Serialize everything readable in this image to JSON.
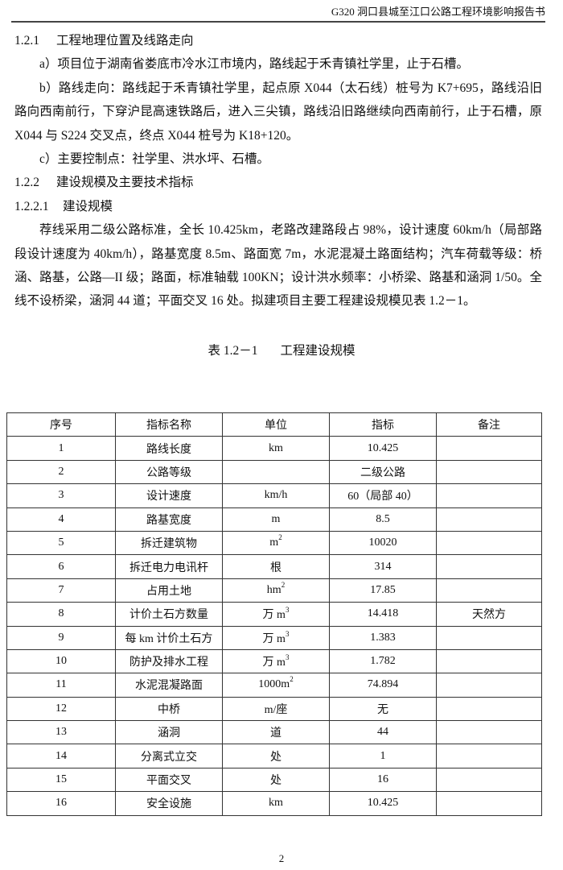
{
  "header": {
    "title": "G320 洞口县城至江口公路工程环境影响报告书"
  },
  "sections": {
    "s121": {
      "num": "1.2.1",
      "title": "工程地理位置及线路走向"
    },
    "pa": "a）项目位于湖南省娄底市冷水江市境内，路线起于禾青镇社学里，止于石槽。",
    "pb": "b）路线走向：路线起于禾青镇社学里，起点原 X044（太石线）桩号为 K7+695，路线沿旧路向西南前行，下穿沪昆高速铁路后，进入三尖镇，路线沿旧路继续向西南前行，止于石槽，原 X044 与 S224 交叉点，终点 X044 桩号为 K18+120。",
    "pc": "c）主要控制点：社学里、洪水坪、石槽。",
    "s122": {
      "num": "1.2.2",
      "title": "建设规模及主要技术指标"
    },
    "s1221": {
      "num": "1.2.2.1",
      "title": "建设规模"
    },
    "pd": "荐线采用二级公路标准，全长 10.425km，老路改建路段占 98%，设计速度 60km/h（局部路段设计速度为 40km/h），路基宽度 8.5m、路面宽 7m，水泥混凝土路面结构；汽车荷载等级：桥涵、路基，公路—II 级；路面，标准轴载 100KN；设计洪水频率：小桥梁、路基和涵洞 1/50。全线不设桥梁，涵洞 44 道；平面交叉 16 处。拟建项目主要工程建设规模见表 1.2－1。"
  },
  "table": {
    "caption_num": "表 1.2－1",
    "caption_title": "工程建设规模",
    "headers": [
      "序号",
      "指标名称",
      "单位",
      "指标",
      "备注"
    ],
    "rows": [
      {
        "no": "1",
        "name": "路线长度",
        "unit": "km",
        "unit_sup": "",
        "value": "10.425",
        "note": ""
      },
      {
        "no": "2",
        "name": "公路等级",
        "unit": "",
        "unit_sup": "",
        "value": "二级公路",
        "note": ""
      },
      {
        "no": "3",
        "name": "设计速度",
        "unit": "km/h",
        "unit_sup": "",
        "value": "60（局部 40）",
        "note": ""
      },
      {
        "no": "4",
        "name": "路基宽度",
        "unit": "m",
        "unit_sup": "",
        "value": "8.5",
        "note": ""
      },
      {
        "no": "5",
        "name": "拆迁建筑物",
        "unit": "m",
        "unit_sup": "2",
        "value": "10020",
        "note": ""
      },
      {
        "no": "6",
        "name": "拆迁电力电讯杆",
        "unit": "根",
        "unit_sup": "",
        "value": "314",
        "note": ""
      },
      {
        "no": "7",
        "name": "占用土地",
        "unit": "hm",
        "unit_sup": "2",
        "value": "17.85",
        "note": ""
      },
      {
        "no": "8",
        "name": "计价土石方数量",
        "unit": "万 m",
        "unit_sup": "3",
        "value": "14.418",
        "note": "天然方"
      },
      {
        "no": "9",
        "name": "每 km 计价土石方",
        "unit": "万 m",
        "unit_sup": "3",
        "value": "1.383",
        "note": ""
      },
      {
        "no": "10",
        "name": "防护及排水工程",
        "unit": "万 m",
        "unit_sup": "3",
        "value": "1.782",
        "note": ""
      },
      {
        "no": "11",
        "name": "水泥混凝路面",
        "unit": "1000m",
        "unit_sup": "2",
        "value": "74.894",
        "note": ""
      },
      {
        "no": "12",
        "name": "中桥",
        "unit": "m/座",
        "unit_sup": "",
        "value": "无",
        "note": ""
      },
      {
        "no": "13",
        "name": "涵洞",
        "unit": "道",
        "unit_sup": "",
        "value": "44",
        "note": ""
      },
      {
        "no": "14",
        "name": "分离式立交",
        "unit": "处",
        "unit_sup": "",
        "value": "1",
        "note": ""
      },
      {
        "no": "15",
        "name": "平面交叉",
        "unit": "处",
        "unit_sup": "",
        "value": "16",
        "note": ""
      },
      {
        "no": "16",
        "name": "安全设施",
        "unit": "km",
        "unit_sup": "",
        "value": "10.425",
        "note": ""
      }
    ]
  },
  "footer": {
    "page": "2"
  }
}
